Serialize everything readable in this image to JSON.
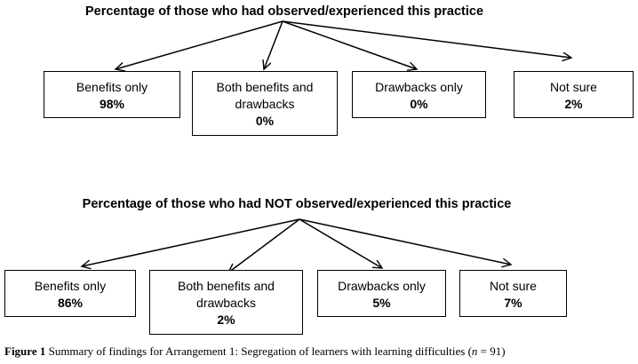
{
  "diagrams": [
    {
      "title": "Percentage of those who had observed/experienced this practice",
      "boxes": [
        {
          "label": "Benefits only",
          "value": "98%"
        },
        {
          "label": "Both benefits and drawbacks",
          "value": "0%"
        },
        {
          "label": "Drawbacks only",
          "value": "0%"
        },
        {
          "label": "Not sure",
          "value": "2%"
        }
      ]
    },
    {
      "title": "Percentage of those who had NOT observed/experienced this practice",
      "boxes": [
        {
          "label": "Benefits only",
          "value": "86%"
        },
        {
          "label": "Both benefits and drawbacks",
          "value": "2%"
        },
        {
          "label": "Drawbacks only",
          "value": "5%"
        },
        {
          "label": "Not sure",
          "value": "7%"
        }
      ]
    }
  ],
  "caption": {
    "label": "Figure 1",
    "text": "Summary of findings for Arrangement 1: Segregation of learners with learning difficulties (",
    "n_symbol": "n",
    "n_text": " = 91)"
  }
}
